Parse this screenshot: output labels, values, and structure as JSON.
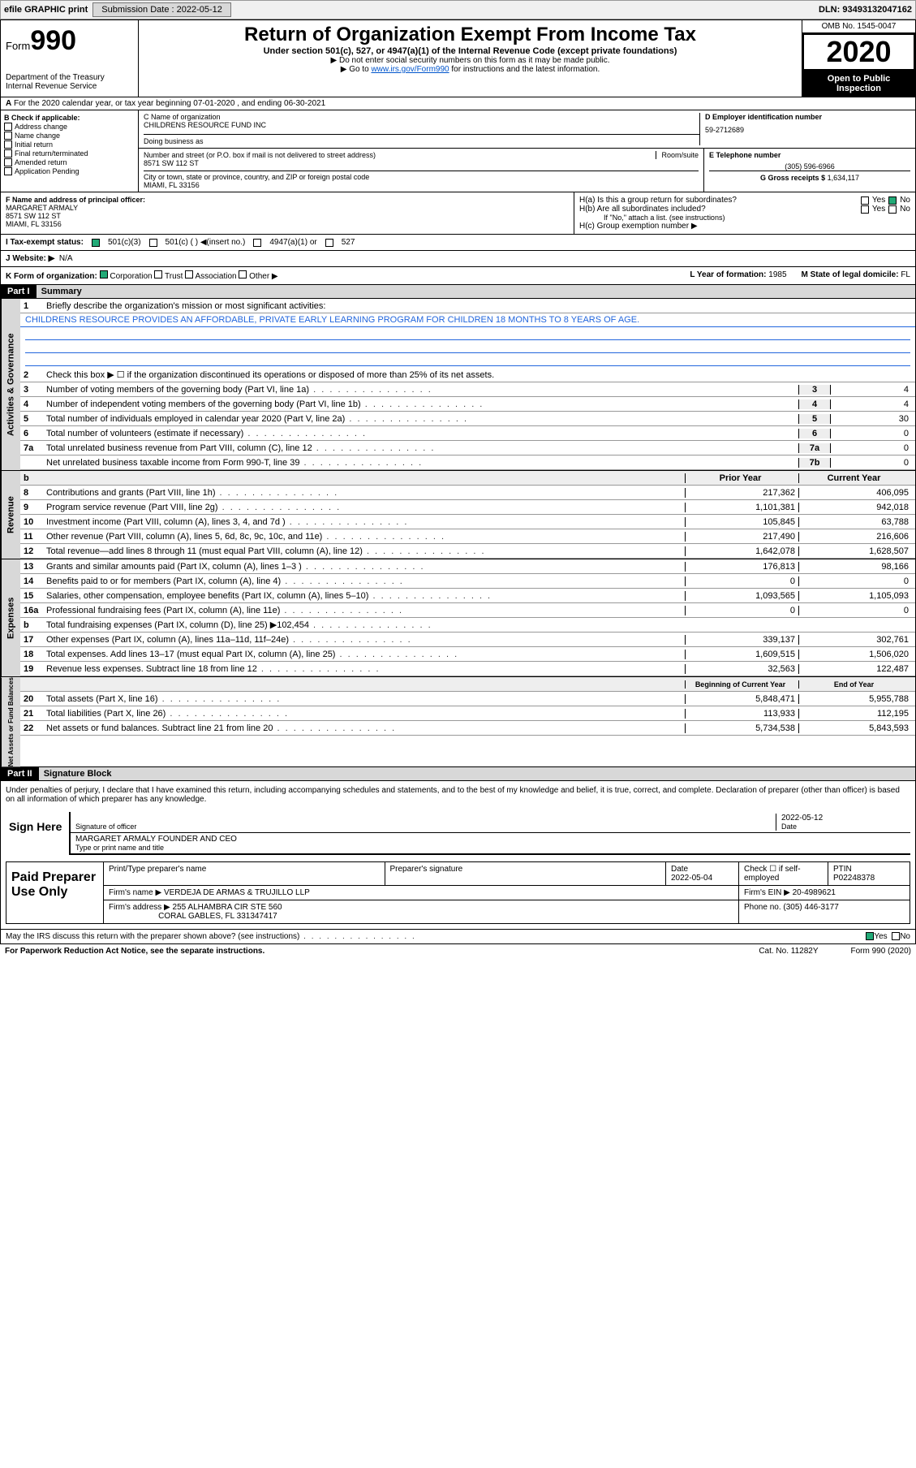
{
  "topbar": {
    "efile": "efile GRAPHIC print",
    "submission_label": "Submission Date :",
    "submission_date": "2022-05-12",
    "dln_label": "DLN:",
    "dln": "93493132047162"
  },
  "header": {
    "form_label": "Form",
    "form_num": "990",
    "dept": "Department of the Treasury\nInternal Revenue Service",
    "title": "Return of Organization Exempt From Income Tax",
    "subtitle": "Under section 501(c), 527, or 4947(a)(1) of the Internal Revenue Code (except private foundations)",
    "note1": "▶ Do not enter social security numbers on this form as it may be made public.",
    "note2": "▶ Go to",
    "link": "www.irs.gov/Form990",
    "note2b": "for instructions and the latest information.",
    "omb": "OMB No. 1545-0047",
    "year": "2020",
    "open": "Open to Public Inspection"
  },
  "a": {
    "text": "For the 2020 calendar year, or tax year beginning 07-01-2020   , and ending 06-30-2021"
  },
  "b": {
    "title": "B Check if applicable:",
    "opts": [
      "Address change",
      "Name change",
      "Initial return",
      "Final return/terminated",
      "Amended return",
      "Application Pending"
    ]
  },
  "c": {
    "name_label": "C Name of organization",
    "name": "CHILDRENS RESOURCE FUND INC",
    "dba_label": "Doing business as",
    "addr_label": "Number and street (or P.O. box if mail is not delivered to street address)",
    "room_label": "Room/suite",
    "addr": "8571 SW 112 ST",
    "city_label": "City or town, state or province, country, and ZIP or foreign postal code",
    "city": "MIAMI, FL  33156"
  },
  "d": {
    "label": "D Employer identification number",
    "val": "59-2712689"
  },
  "e": {
    "label": "E Telephone number",
    "val": "(305) 596-6966"
  },
  "g": {
    "label": "G Gross receipts $",
    "val": "1,634,117"
  },
  "f": {
    "label": "F Name and address of principal officer:",
    "name": "MARGARET ARMALY",
    "addr1": "8571 SW 112 ST",
    "addr2": "MIAMI, FL  33156"
  },
  "h": {
    "a": "H(a)  Is this a group return for subordinates?",
    "b": "H(b)  Are all subordinates included?",
    "bnote": "If \"No,\" attach a list. (see instructions)",
    "c": "H(c)  Group exemption number ▶"
  },
  "i": {
    "label": "I   Tax-exempt status:",
    "o1": "501(c)(3)",
    "o2": "501(c) (  ) ◀(insert no.)",
    "o3": "4947(a)(1) or",
    "o4": "527"
  },
  "j": {
    "label": "J   Website: ▶",
    "val": "N/A"
  },
  "k": {
    "label": "K Form of organization:",
    "o1": "Corporation",
    "o2": "Trust",
    "o3": "Association",
    "o4": "Other ▶"
  },
  "l": {
    "label": "L Year of formation:",
    "val": "1985"
  },
  "m": {
    "label": "M State of legal domicile:",
    "val": "FL"
  },
  "part1": {
    "hdr": "Part I",
    "title": "Summary",
    "q1": "Briefly describe the organization's mission or most significant activities:",
    "q1ans": "CHILDRENS RESOURCE PROVIDES AN AFFORDABLE, PRIVATE EARLY LEARNING PROGRAM FOR CHILDREN 18 MONTHS TO 8 YEARS OF AGE.",
    "q2": "Check this box ▶ ☐  if the organization discontinued its operations or disposed of more than 25% of its net assets.",
    "governance": [
      {
        "n": "3",
        "t": "Number of voting members of the governing body (Part VI, line 1a)",
        "c": "3",
        "v": "4"
      },
      {
        "n": "4",
        "t": "Number of independent voting members of the governing body (Part VI, line 1b)",
        "c": "4",
        "v": "4"
      },
      {
        "n": "5",
        "t": "Total number of individuals employed in calendar year 2020 (Part V, line 2a)",
        "c": "5",
        "v": "30"
      },
      {
        "n": "6",
        "t": "Total number of volunteers (estimate if necessary)",
        "c": "6",
        "v": "0"
      },
      {
        "n": "7a",
        "t": "Total unrelated business revenue from Part VIII, column (C), line 12",
        "c": "7a",
        "v": "0"
      },
      {
        "n": "",
        "t": "Net unrelated business taxable income from Form 990-T, line 39",
        "c": "7b",
        "v": "0"
      }
    ],
    "col_prior": "Prior Year",
    "col_current": "Current Year",
    "revenue": [
      {
        "n": "8",
        "t": "Contributions and grants (Part VIII, line 1h)",
        "p": "217,362",
        "c": "406,095"
      },
      {
        "n": "9",
        "t": "Program service revenue (Part VIII, line 2g)",
        "p": "1,101,381",
        "c": "942,018"
      },
      {
        "n": "10",
        "t": "Investment income (Part VIII, column (A), lines 3, 4, and 7d )",
        "p": "105,845",
        "c": "63,788"
      },
      {
        "n": "11",
        "t": "Other revenue (Part VIII, column (A), lines 5, 6d, 8c, 9c, 10c, and 11e)",
        "p": "217,490",
        "c": "216,606"
      },
      {
        "n": "12",
        "t": "Total revenue—add lines 8 through 11 (must equal Part VIII, column (A), line 12)",
        "p": "1,642,078",
        "c": "1,628,507"
      }
    ],
    "expenses": [
      {
        "n": "13",
        "t": "Grants and similar amounts paid (Part IX, column (A), lines 1–3 )",
        "p": "176,813",
        "c": "98,166"
      },
      {
        "n": "14",
        "t": "Benefits paid to or for members (Part IX, column (A), line 4)",
        "p": "0",
        "c": "0"
      },
      {
        "n": "15",
        "t": "Salaries, other compensation, employee benefits (Part IX, column (A), lines 5–10)",
        "p": "1,093,565",
        "c": "1,105,093"
      },
      {
        "n": "16a",
        "t": "Professional fundraising fees (Part IX, column (A), line 11e)",
        "p": "0",
        "c": "0"
      },
      {
        "n": "b",
        "t": "Total fundraising expenses (Part IX, column (D), line 25) ▶102,454",
        "p": "",
        "c": ""
      },
      {
        "n": "17",
        "t": "Other expenses (Part IX, column (A), lines 11a–11d, 11f–24e)",
        "p": "339,137",
        "c": "302,761"
      },
      {
        "n": "18",
        "t": "Total expenses. Add lines 13–17 (must equal Part IX, column (A), line 25)",
        "p": "1,609,515",
        "c": "1,506,020"
      },
      {
        "n": "19",
        "t": "Revenue less expenses. Subtract line 18 from line 12",
        "p": "32,563",
        "c": "122,487"
      }
    ],
    "col_begin": "Beginning of Current Year",
    "col_end": "End of Year",
    "net": [
      {
        "n": "20",
        "t": "Total assets (Part X, line 16)",
        "p": "5,848,471",
        "c": "5,955,788"
      },
      {
        "n": "21",
        "t": "Total liabilities (Part X, line 26)",
        "p": "113,933",
        "c": "112,195"
      },
      {
        "n": "22",
        "t": "Net assets or fund balances. Subtract line 21 from line 20",
        "p": "5,734,538",
        "c": "5,843,593"
      }
    ],
    "vlabels": {
      "gov": "Activities & Governance",
      "rev": "Revenue",
      "exp": "Expenses",
      "net": "Net Assets or Fund Balances"
    }
  },
  "part2": {
    "hdr": "Part II",
    "title": "Signature Block",
    "decl": "Under penalties of perjury, I declare that I have examined this return, including accompanying schedules and statements, and to the best of my knowledge and belief, it is true, correct, and complete. Declaration of preparer (other than officer) is based on all information of which preparer has any knowledge.",
    "sign_here": "Sign Here",
    "sig_officer": "Signature of officer",
    "sig_date": "2022-05-12",
    "sig_date_label": "Date",
    "officer_name": "MARGARET ARMALY  FOUNDER AND CEO",
    "officer_name_label": "Type or print name and title",
    "paid": "Paid Preparer Use Only",
    "prep_name_label": "Print/Type preparer's name",
    "prep_sig_label": "Preparer's signature",
    "prep_date_label": "Date",
    "prep_date": "2022-05-04",
    "prep_check": "Check ☐ if self-employed",
    "ptin_label": "PTIN",
    "ptin": "P02248378",
    "firm_name_label": "Firm's name    ▶",
    "firm_name": "VERDEJA DE ARMAS & TRUJILLO LLP",
    "firm_ein_label": "Firm's EIN ▶",
    "firm_ein": "20-4989621",
    "firm_addr_label": "Firm's address ▶",
    "firm_addr1": "255 ALHAMBRA CIR STE 560",
    "firm_addr2": "CORAL GABLES, FL  331347417",
    "firm_phone_label": "Phone no.",
    "firm_phone": "(305) 446-3177",
    "discuss": "May the IRS discuss this return with the preparer shown above? (see instructions)",
    "paperwork": "For Paperwork Reduction Act Notice, see the separate instructions.",
    "catno": "Cat. No. 11282Y",
    "formfoot": "Form 990 (2020)"
  },
  "yes": "Yes",
  "no": "No"
}
